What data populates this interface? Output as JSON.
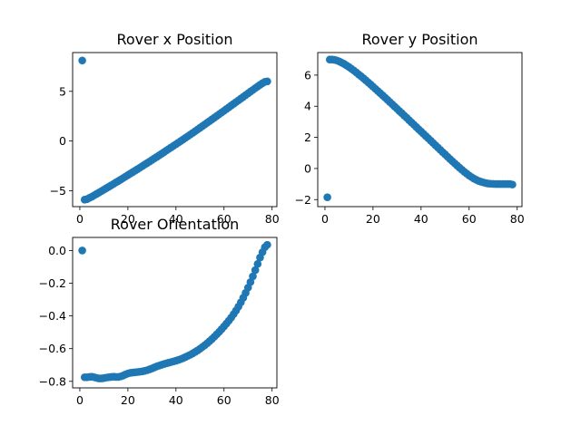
{
  "chart_data": [
    {
      "type": "scatter",
      "title": "Rover x Position",
      "xlabel": "",
      "ylabel": "",
      "xlim": [
        -3,
        82
      ],
      "ylim": [
        -6.6,
        8.9
      ],
      "xticks": [
        0,
        20,
        40,
        60,
        80
      ],
      "xtick_labels": [
        "0",
        "20",
        "40",
        "60",
        "80"
      ],
      "yticks": [
        -5,
        0,
        5
      ],
      "ytick_labels": [
        "−5",
        "0",
        "5"
      ],
      "grid": false,
      "color": "#1f77b4",
      "x": [
        1,
        2,
        3,
        4,
        5,
        6,
        7,
        8,
        9,
        10,
        11,
        12,
        13,
        14,
        15,
        16,
        17,
        18,
        19,
        20,
        21,
        22,
        23,
        24,
        25,
        26,
        27,
        28,
        29,
        30,
        31,
        32,
        33,
        34,
        35,
        36,
        37,
        38,
        39,
        40,
        41,
        42,
        43,
        44,
        45,
        46,
        47,
        48,
        49,
        50,
        51,
        52,
        53,
        54,
        55,
        56,
        57,
        58,
        59,
        60,
        61,
        62,
        63,
        64,
        65,
        66,
        67,
        68,
        69,
        70,
        71,
        72,
        73,
        74,
        75,
        76,
        77,
        78
      ],
      "y": [
        8.1,
        -5.9,
        -5.85,
        -5.72,
        -5.6,
        -5.46,
        -5.32,
        -5.18,
        -5.04,
        -4.9,
        -4.75,
        -4.61,
        -4.46,
        -4.32,
        -4.17,
        -4.03,
        -3.88,
        -3.73,
        -3.58,
        -3.43,
        -3.28,
        -3.13,
        -2.98,
        -2.83,
        -2.68,
        -2.53,
        -2.37,
        -2.22,
        -2.07,
        -1.91,
        -1.75,
        -1.6,
        -1.44,
        -1.28,
        -1.12,
        -0.96,
        -0.8,
        -0.64,
        -0.48,
        -0.32,
        -0.16,
        0.0,
        0.16,
        0.33,
        0.49,
        0.66,
        0.82,
        0.99,
        1.16,
        1.33,
        1.5,
        1.67,
        1.84,
        2.01,
        2.18,
        2.35,
        2.52,
        2.7,
        2.87,
        3.04,
        3.22,
        3.39,
        3.57,
        3.74,
        3.92,
        4.09,
        4.27,
        4.44,
        4.62,
        4.79,
        4.97,
        5.14,
        5.32,
        5.49,
        5.66,
        5.82,
        5.95,
        6.0
      ]
    },
    {
      "type": "scatter",
      "title": "Rover y Position",
      "xlabel": "",
      "ylabel": "",
      "xlim": [
        -3,
        82
      ],
      "ylim": [
        -2.45,
        7.45
      ],
      "xticks": [
        0,
        20,
        40,
        60,
        80
      ],
      "xtick_labels": [
        "0",
        "20",
        "40",
        "60",
        "80"
      ],
      "yticks": [
        -2,
        0,
        2,
        4,
        6
      ],
      "ytick_labels": [
        "−2",
        "0",
        "2",
        "4",
        "6"
      ],
      "grid": false,
      "color": "#1f77b4",
      "x": [
        1,
        2,
        3,
        4,
        5,
        6,
        7,
        8,
        9,
        10,
        11,
        12,
        13,
        14,
        15,
        16,
        17,
        18,
        19,
        20,
        21,
        22,
        23,
        24,
        25,
        26,
        27,
        28,
        29,
        30,
        31,
        32,
        33,
        34,
        35,
        36,
        37,
        38,
        39,
        40,
        41,
        42,
        43,
        44,
        45,
        46,
        47,
        48,
        49,
        50,
        51,
        52,
        53,
        54,
        55,
        56,
        57,
        58,
        59,
        60,
        61,
        62,
        63,
        64,
        65,
        66,
        67,
        68,
        69,
        70,
        71,
        72,
        73,
        74,
        75,
        76,
        77,
        78
      ],
      "y": [
        -1.85,
        7.0,
        7.0,
        6.98,
        6.94,
        6.88,
        6.8,
        6.72,
        6.62,
        6.52,
        6.41,
        6.3,
        6.18,
        6.05,
        5.93,
        5.8,
        5.67,
        5.53,
        5.4,
        5.26,
        5.12,
        4.98,
        4.84,
        4.7,
        4.56,
        4.42,
        4.27,
        4.13,
        3.98,
        3.84,
        3.69,
        3.55,
        3.4,
        3.26,
        3.11,
        2.96,
        2.82,
        2.67,
        2.52,
        2.38,
        2.23,
        2.08,
        1.94,
        1.79,
        1.64,
        1.49,
        1.35,
        1.2,
        1.05,
        0.91,
        0.76,
        0.61,
        0.47,
        0.33,
        0.19,
        0.05,
        -0.08,
        -0.21,
        -0.33,
        -0.45,
        -0.55,
        -0.65,
        -0.73,
        -0.8,
        -0.85,
        -0.9,
        -0.94,
        -0.97,
        -0.98,
        -0.99,
        -1.0,
        -1.0,
        -1.0,
        -1.0,
        -1.0,
        -1.0,
        -1.0,
        -1.03
      ]
    },
    {
      "type": "scatter",
      "title": "Rover Orientation",
      "xlabel": "",
      "ylabel": "",
      "xlim": [
        -3,
        82
      ],
      "ylim": [
        -0.84,
        0.08
      ],
      "xticks": [
        0,
        20,
        40,
        60,
        80
      ],
      "xtick_labels": [
        "0",
        "20",
        "40",
        "60",
        "80"
      ],
      "yticks": [
        0.0,
        -0.2,
        -0.4,
        -0.6,
        -0.8
      ],
      "ytick_labels": [
        "0.0",
        "−0.2",
        "−0.4",
        "−0.6",
        "−0.8"
      ],
      "grid": false,
      "color": "#1f77b4",
      "x": [
        1,
        2,
        3,
        4,
        5,
        6,
        7,
        8,
        9,
        10,
        11,
        12,
        13,
        14,
        15,
        16,
        17,
        18,
        19,
        20,
        21,
        22,
        23,
        24,
        25,
        26,
        27,
        28,
        29,
        30,
        31,
        32,
        33,
        34,
        35,
        36,
        37,
        38,
        39,
        40,
        41,
        42,
        43,
        44,
        45,
        46,
        47,
        48,
        49,
        50,
        51,
        52,
        53,
        54,
        55,
        56,
        57,
        58,
        59,
        60,
        61,
        62,
        63,
        64,
        65,
        66,
        67,
        68,
        69,
        70,
        71,
        72,
        73,
        74,
        75,
        76,
        77,
        78
      ],
      "y": [
        0.0,
        -0.775,
        -0.775,
        -0.773,
        -0.772,
        -0.775,
        -0.779,
        -0.782,
        -0.782,
        -0.78,
        -0.777,
        -0.775,
        -0.773,
        -0.772,
        -0.773,
        -0.773,
        -0.77,
        -0.765,
        -0.758,
        -0.752,
        -0.748,
        -0.746,
        -0.745,
        -0.743,
        -0.741,
        -0.739,
        -0.736,
        -0.732,
        -0.727,
        -0.721,
        -0.715,
        -0.709,
        -0.704,
        -0.699,
        -0.694,
        -0.69,
        -0.686,
        -0.682,
        -0.678,
        -0.674,
        -0.669,
        -0.664,
        -0.658,
        -0.651,
        -0.644,
        -0.637,
        -0.629,
        -0.62,
        -0.611,
        -0.601,
        -0.59,
        -0.579,
        -0.567,
        -0.554,
        -0.541,
        -0.527,
        -0.512,
        -0.497,
        -0.481,
        -0.464,
        -0.447,
        -0.429,
        -0.41,
        -0.389,
        -0.367,
        -0.343,
        -0.317,
        -0.289,
        -0.259,
        -0.227,
        -0.193,
        -0.158,
        -0.12,
        -0.082,
        -0.043,
        -0.01,
        0.02,
        0.035
      ]
    }
  ]
}
